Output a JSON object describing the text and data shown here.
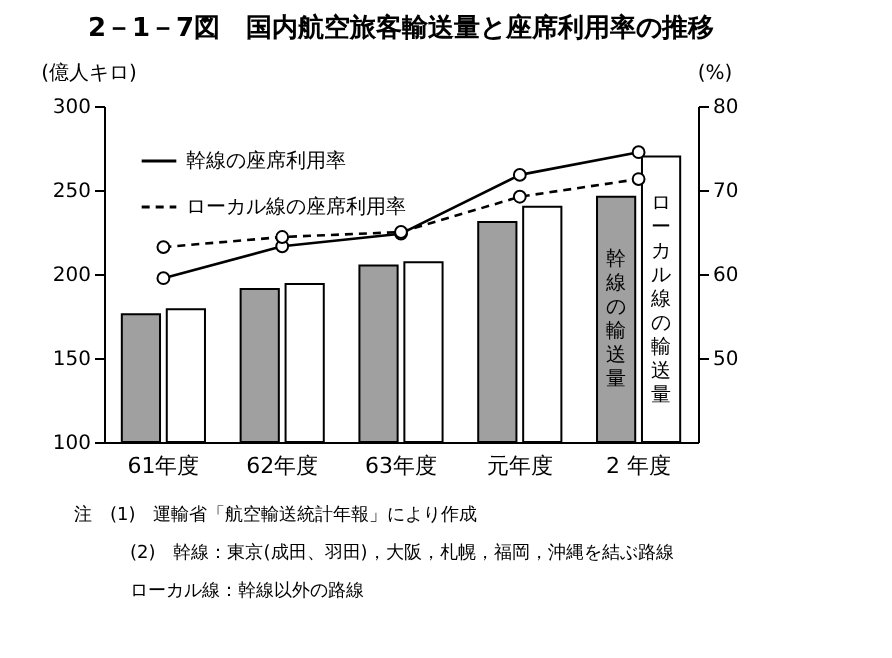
{
  "chart_data": {
    "type": "bar",
    "title": "2－1－7図　国内航空旅客輸送量と座席利用率の推移",
    "categories": [
      "61年度",
      "62年度",
      "63年度",
      "元年度",
      "2 年度"
    ],
    "series": [
      {
        "name": "幹線の輸送量",
        "color": "#a0a0a0",
        "values": [
          176,
          191,
          205,
          231,
          246
        ]
      },
      {
        "name": "ローカル線の輸送量",
        "color": "#ffffff",
        "values": [
          179,
          194,
          207,
          240,
          270
        ]
      },
      {
        "name": "幹線の座席利用率",
        "type": "line",
        "axis": "y2",
        "color": "#000000",
        "line_style": "solid",
        "values": [
          59.5,
          63.3,
          64.8,
          71.8,
          74.5
        ]
      },
      {
        "name": "ローカル線の座席利用率",
        "type": "line",
        "axis": "y2",
        "color": "#000000",
        "line_style": "dashed",
        "values": [
          63.2,
          64.4,
          65.0,
          69.2,
          71.3
        ]
      }
    ],
    "ylabel": "(億人キロ)",
    "y2label": "(%)",
    "ylim": [
      100,
      300
    ],
    "yticks": [
      100,
      150,
      200,
      250,
      300
    ],
    "y2lim": [
      40,
      80
    ],
    "y2ticks": [
      50,
      60,
      70,
      80
    ],
    "marker": "circle",
    "legend": "top left",
    "grid": false,
    "annotations": [
      "注　(1)　運輸省「航空輸送統計年報」により作成",
      "(2)　幹線：東京(成田、羽田)，大阪，札幌，福岡，沖縄を結ぶ路線",
      "ローカル線：幹線以外の路線"
    ]
  }
}
